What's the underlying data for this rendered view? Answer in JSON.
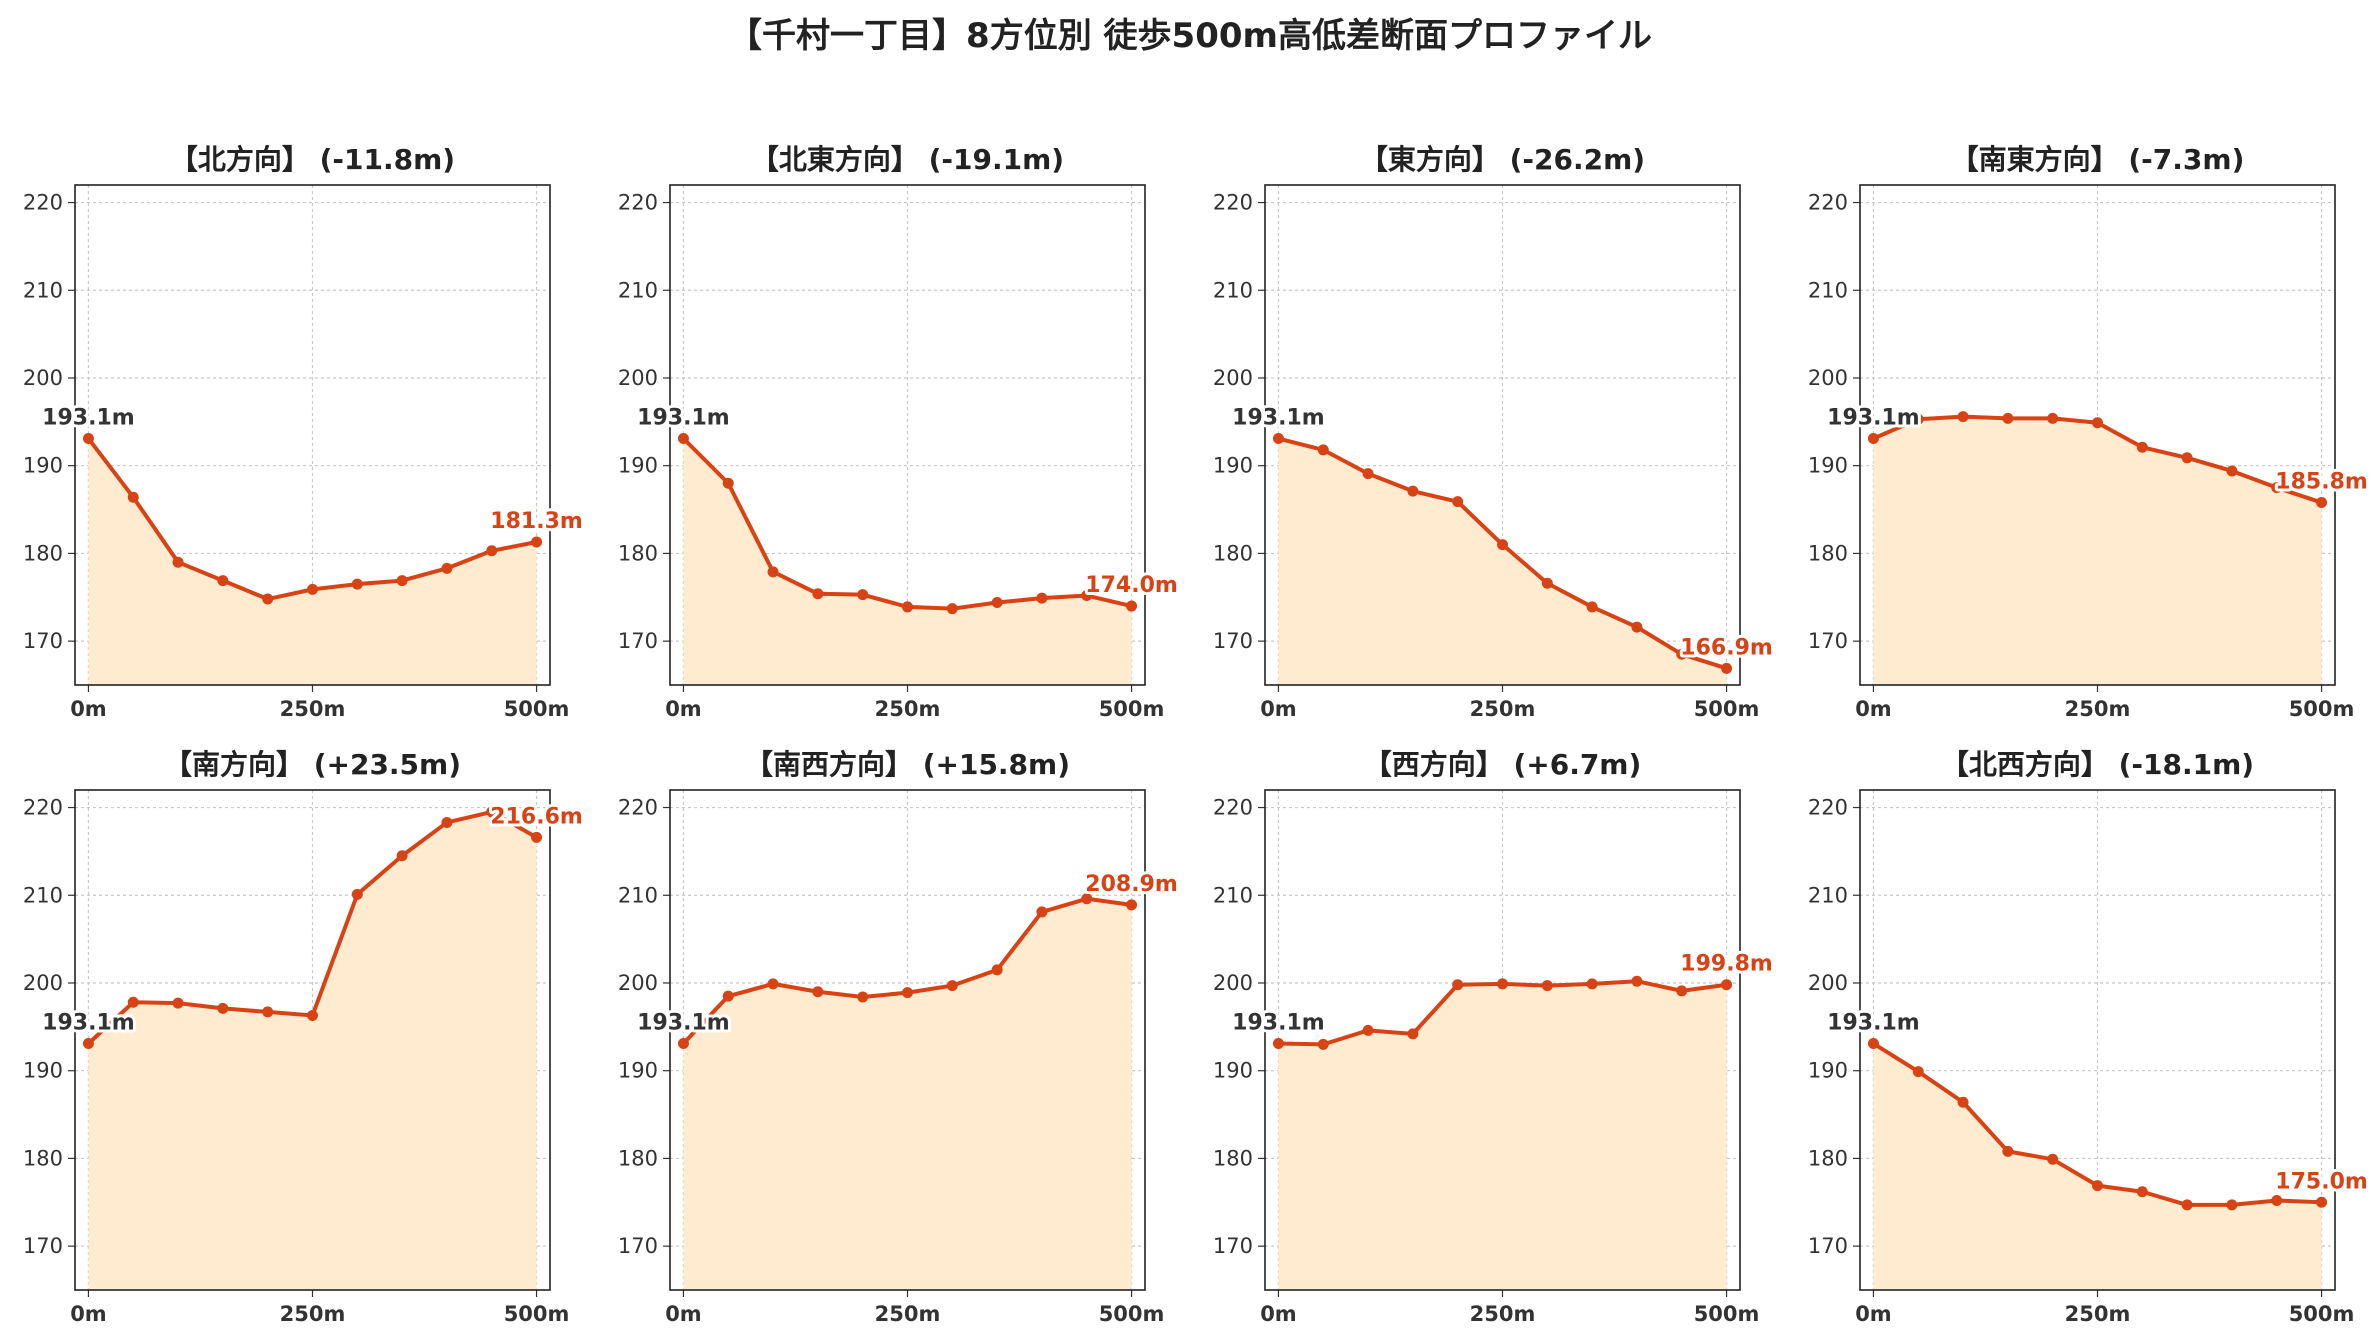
{
  "figure": {
    "title": "【千村一丁目】8方位別 徒歩500m高低差断面プロファイル"
  },
  "style": {
    "line_color": "#d84315",
    "fill_color": "#ffecd0",
    "grid_color": "#c8c8c8",
    "start_label_color": "#333333",
    "end_label_color": "#d84315"
  },
  "chart_data": [
    {
      "type": "area",
      "title": "【北方向】 (-11.8m)",
      "x": [
        0,
        50,
        100,
        150,
        200,
        250,
        300,
        350,
        400,
        450,
        500
      ],
      "y": [
        193.1,
        186.4,
        179.0,
        176.9,
        174.8,
        175.9,
        176.5,
        176.9,
        178.3,
        180.3,
        181.3
      ],
      "xticks": [
        "0m",
        "250m",
        "500m"
      ],
      "yticks": [
        170,
        180,
        190,
        200,
        210,
        220
      ],
      "ylim": [
        165,
        222
      ],
      "xlim": [
        -15,
        515
      ],
      "start_label": "193.1m",
      "end_label": "181.3m",
      "grid": true
    },
    {
      "type": "area",
      "title": "【北東方向】 (-19.1m)",
      "x": [
        0,
        50,
        100,
        150,
        200,
        250,
        300,
        350,
        400,
        450,
        500
      ],
      "y": [
        193.1,
        188.0,
        177.9,
        175.4,
        175.3,
        173.9,
        173.7,
        174.4,
        174.9,
        175.2,
        174.0
      ],
      "xticks": [
        "0m",
        "250m",
        "500m"
      ],
      "yticks": [
        170,
        180,
        190,
        200,
        210,
        220
      ],
      "ylim": [
        165,
        222
      ],
      "xlim": [
        -15,
        515
      ],
      "start_label": "193.1m",
      "end_label": "174.0m",
      "grid": true
    },
    {
      "type": "area",
      "title": "【東方向】 (-26.2m)",
      "x": [
        0,
        50,
        100,
        150,
        200,
        250,
        300,
        350,
        400,
        450,
        500
      ],
      "y": [
        193.1,
        191.8,
        189.1,
        187.1,
        185.9,
        181.0,
        176.6,
        173.9,
        171.6,
        168.5,
        166.9
      ],
      "xticks": [
        "0m",
        "250m",
        "500m"
      ],
      "yticks": [
        170,
        180,
        190,
        200,
        210,
        220
      ],
      "ylim": [
        165,
        222
      ],
      "xlim": [
        -15,
        515
      ],
      "start_label": "193.1m",
      "end_label": "166.9m",
      "grid": true
    },
    {
      "type": "area",
      "title": "【南東方向】 (-7.3m)",
      "x": [
        0,
        50,
        100,
        150,
        200,
        250,
        300,
        350,
        400,
        450,
        500
      ],
      "y": [
        193.1,
        195.3,
        195.6,
        195.4,
        195.4,
        194.9,
        192.1,
        190.9,
        189.4,
        187.5,
        185.8
      ],
      "xticks": [
        "0m",
        "250m",
        "500m"
      ],
      "yticks": [
        170,
        180,
        190,
        200,
        210,
        220
      ],
      "ylim": [
        165,
        222
      ],
      "xlim": [
        -15,
        515
      ],
      "start_label": "193.1m",
      "end_label": "185.8m",
      "grid": true
    },
    {
      "type": "area",
      "title": "【南方向】 (+23.5m)",
      "x": [
        0,
        50,
        100,
        150,
        200,
        250,
        300,
        350,
        400,
        450,
        500
      ],
      "y": [
        193.1,
        197.8,
        197.7,
        197.1,
        196.7,
        196.3,
        210.1,
        214.5,
        218.3,
        219.5,
        216.6
      ],
      "xticks": [
        "0m",
        "250m",
        "500m"
      ],
      "yticks": [
        170,
        180,
        190,
        200,
        210,
        220
      ],
      "ylim": [
        165,
        222
      ],
      "xlim": [
        -15,
        515
      ],
      "start_label": "193.1m",
      "end_label": "216.6m",
      "grid": true
    },
    {
      "type": "area",
      "title": "【南西方向】 (+15.8m)",
      "x": [
        0,
        50,
        100,
        150,
        200,
        250,
        300,
        350,
        400,
        450,
        500
      ],
      "y": [
        193.1,
        198.5,
        199.9,
        199.0,
        198.4,
        198.9,
        199.7,
        201.5,
        208.1,
        209.6,
        208.9
      ],
      "xticks": [
        "0m",
        "250m",
        "500m"
      ],
      "yticks": [
        170,
        180,
        190,
        200,
        210,
        220
      ],
      "ylim": [
        165,
        222
      ],
      "xlim": [
        -15,
        515
      ],
      "start_label": "193.1m",
      "end_label": "208.9m",
      "grid": true
    },
    {
      "type": "area",
      "title": "【西方向】 (+6.7m)",
      "x": [
        0,
        50,
        100,
        150,
        200,
        250,
        300,
        350,
        400,
        450,
        500
      ],
      "y": [
        193.1,
        193.0,
        194.6,
        194.2,
        199.8,
        199.9,
        199.7,
        199.9,
        200.2,
        199.1,
        199.8
      ],
      "xticks": [
        "0m",
        "250m",
        "500m"
      ],
      "yticks": [
        170,
        180,
        190,
        200,
        210,
        220
      ],
      "ylim": [
        165,
        222
      ],
      "xlim": [
        -15,
        515
      ],
      "start_label": "193.1m",
      "end_label": "199.8m",
      "grid": true
    },
    {
      "type": "area",
      "title": "【北西方向】 (-18.1m)",
      "x": [
        0,
        50,
        100,
        150,
        200,
        250,
        300,
        350,
        400,
        450,
        500
      ],
      "y": [
        193.1,
        189.9,
        186.4,
        180.8,
        179.9,
        176.9,
        176.2,
        174.7,
        174.7,
        175.2,
        175.0
      ],
      "xticks": [
        "0m",
        "250m",
        "500m"
      ],
      "yticks": [
        170,
        180,
        190,
        200,
        210,
        220
      ],
      "ylim": [
        165,
        222
      ],
      "xlim": [
        -15,
        515
      ],
      "start_label": "193.1m",
      "end_label": "175.0m",
      "grid": true
    }
  ]
}
